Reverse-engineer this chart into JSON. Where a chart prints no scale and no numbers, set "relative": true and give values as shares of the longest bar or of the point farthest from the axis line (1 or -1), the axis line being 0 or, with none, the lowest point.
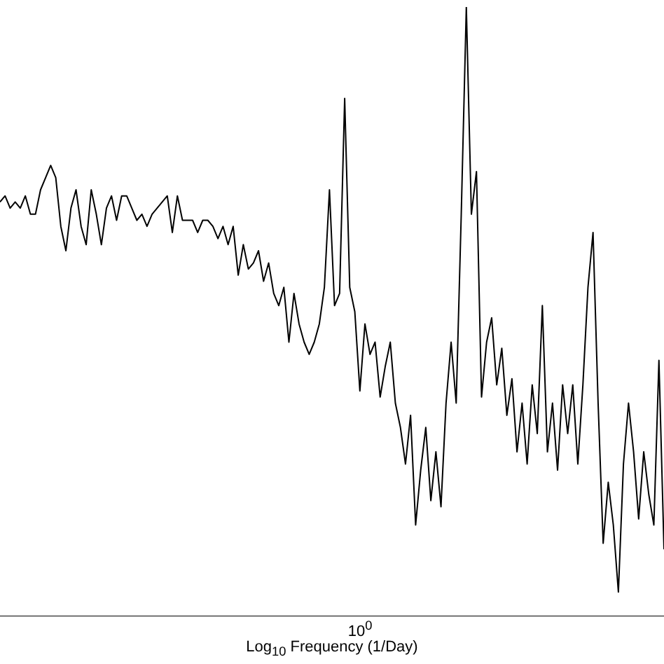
{
  "chart_data": {
    "type": "line",
    "relative": true,
    "xlabel": "Log$_{10}$ Frequency (1/Day)",
    "annotations": [
      "10$^{0}$"
    ],
    "grid": false,
    "legend": false,
    "marker": "none",
    "line_style": "solid",
    "categories": [
      null,
      null,
      null,
      null,
      null,
      null,
      null,
      null,
      null,
      null,
      null,
      null,
      null,
      null,
      null,
      null,
      null,
      null,
      null,
      null,
      null,
      null,
      null,
      null,
      null,
      null,
      null,
      null,
      null,
      null,
      null,
      null,
      null,
      null,
      null,
      null,
      null,
      null,
      null,
      null,
      null,
      null,
      null,
      null,
      null,
      null,
      null,
      null,
      null,
      null,
      null,
      null,
      null,
      null,
      null,
      null,
      null,
      null,
      null,
      null,
      null,
      null,
      null,
      null,
      null,
      null,
      null,
      null,
      null,
      null,
      null,
      null,
      null,
      null,
      null,
      null,
      null,
      null,
      null,
      null,
      null,
      null,
      null,
      null,
      null,
      null,
      null,
      null,
      null,
      null,
      null,
      null,
      null,
      null,
      null,
      null,
      null,
      null,
      null,
      null,
      null,
      null,
      null,
      null,
      null,
      null,
      null,
      null,
      null,
      null,
      null,
      null,
      null,
      null,
      null,
      null,
      null,
      null,
      null,
      null,
      null,
      null,
      null,
      null,
      null,
      null,
      null,
      null,
      null,
      null,
      null,
      null
    ],
    "series": [
      {
        "color": "#000000",
        "values": [
          0.68,
          0.69,
          0.67,
          0.68,
          0.67,
          0.69,
          0.66,
          0.66,
          0.7,
          0.72,
          0.74,
          0.72,
          0.64,
          0.6,
          0.67,
          0.7,
          0.64,
          0.61,
          0.7,
          0.66,
          0.61,
          0.67,
          0.69,
          0.65,
          0.69,
          0.69,
          0.67,
          0.65,
          0.66,
          0.64,
          0.66,
          0.67,
          0.68,
          0.69,
          0.63,
          0.69,
          0.65,
          0.65,
          0.65,
          0.63,
          0.65,
          0.65,
          0.64,
          0.62,
          0.64,
          0.61,
          0.64,
          0.56,
          0.61,
          0.57,
          0.58,
          0.6,
          0.55,
          0.58,
          0.53,
          0.51,
          0.54,
          0.45,
          0.53,
          0.48,
          0.45,
          0.43,
          0.45,
          0.48,
          0.54,
          0.7,
          0.51,
          0.53,
          0.85,
          0.54,
          0.5,
          0.37,
          0.48,
          0.43,
          0.45,
          0.36,
          0.41,
          0.45,
          0.35,
          0.31,
          0.25,
          0.33,
          0.15,
          0.24,
          0.31,
          0.19,
          0.27,
          0.18,
          0.35,
          0.45,
          0.35,
          0.66,
          1.0,
          0.66,
          0.73,
          0.36,
          0.45,
          0.49,
          0.38,
          0.44,
          0.33,
          0.39,
          0.27,
          0.35,
          0.25,
          0.38,
          0.3,
          0.51,
          0.27,
          0.35,
          0.24,
          0.38,
          0.3,
          0.38,
          0.25,
          0.38,
          0.54,
          0.63,
          0.35,
          0.12,
          0.22,
          0.15,
          0.04,
          0.25,
          0.35,
          0.27,
          0.16,
          0.27,
          0.2,
          0.15,
          0.42,
          0.11
        ]
      }
    ]
  }
}
